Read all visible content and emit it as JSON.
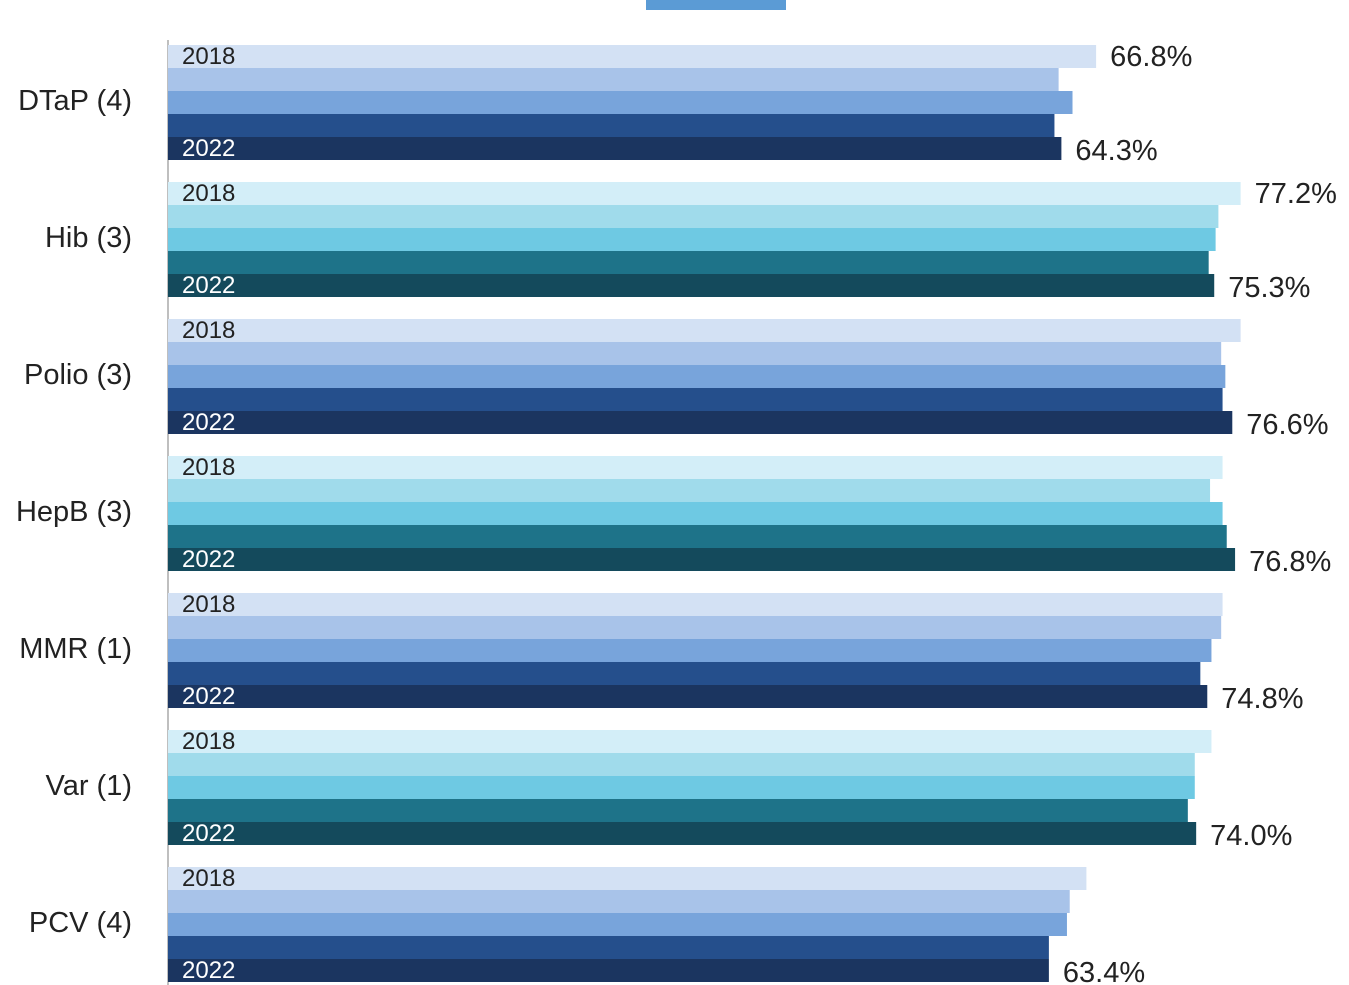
{
  "chart_data": {
    "type": "hbar",
    "categories": [
      "DTaP (4)",
      "Hib (3)",
      "Polio (3)",
      "HepB (3)",
      "MMR (1)",
      "Var (1)",
      "PCV (4)"
    ],
    "series": [
      {
        "name": "2018",
        "values": [
          66.8,
          77.2,
          77.2,
          75.9,
          75.9,
          75.1,
          66.1
        ],
        "value_labels": [
          "66.8%",
          "77.2%",
          null,
          null,
          null,
          null,
          null
        ]
      },
      {
        "values": [
          64.1,
          75.6,
          75.8,
          75.0,
          75.8,
          73.9,
          64.9
        ]
      },
      {
        "values": [
          65.1,
          75.4,
          76.1,
          75.9,
          75.1,
          73.9,
          64.7
        ]
      },
      {
        "values": [
          63.8,
          74.9,
          75.9,
          76.2,
          74.3,
          73.4,
          63.4
        ]
      },
      {
        "name": "2022",
        "values": [
          64.3,
          75.3,
          76.6,
          76.8,
          74.8,
          74.0,
          63.4
        ],
        "value_labels": [
          "64.3%",
          "75.3%",
          "76.6%",
          "76.8%",
          "74.8%",
          "74.0%",
          "63.4%"
        ]
      }
    ],
    "palettes": {
      "blue": [
        "#d3e1f4",
        "#a8c3e9",
        "#78a4db",
        "#254f8c",
        "#1b3560"
      ],
      "teal": [
        "#d3eef8",
        "#a0dbeb",
        "#6ec9e3",
        "#1e7389",
        "#144a5c"
      ]
    },
    "category_palette": [
      "blue",
      "teal",
      "blue",
      "teal",
      "blue",
      "teal",
      "blue"
    ],
    "xlim": [
      0,
      85
    ]
  }
}
